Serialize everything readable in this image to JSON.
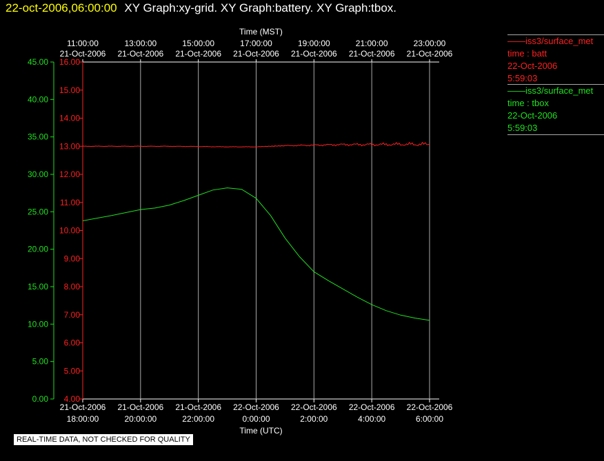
{
  "header": {
    "timestamp": "22-oct-2006,06:00:00",
    "graphs": "XY Graph:xy-grid.  XY Graph:battery.  XY Graph:tbox."
  },
  "note": "REAL-TIME DATA, NOT CHECKED FOR QUALITY",
  "colors": {
    "batt": "#ff2020",
    "tbox": "#20e020",
    "grid": "#aaaaaa",
    "text": "#ffffff",
    "stamp": "#ffff00"
  },
  "legend": [
    {
      "series": "iss3/surface_met",
      "var": "time : batt",
      "date": "22-Oct-2006",
      "time": "5:59:03",
      "color": "#ff2020"
    },
    {
      "series": "iss3/surface_met",
      "var": "time : tbox",
      "date": "22-Oct-2006",
      "time": "5:59:03",
      "color": "#20e020"
    }
  ],
  "chart_data": {
    "type": "line",
    "x_top_label": "Time (MST)",
    "x_bottom_label": "Time (UTC)",
    "x_top_ticks": [
      [
        "11:00:00",
        "21-Oct-2006"
      ],
      [
        "13:00:00",
        "21-Oct-2006"
      ],
      [
        "15:00:00",
        "21-Oct-2006"
      ],
      [
        "17:00:00",
        "21-Oct-2006"
      ],
      [
        "19:00:00",
        "21-Oct-2006"
      ],
      [
        "21:00:00",
        "21-Oct-2006"
      ],
      [
        "23:00:00",
        "21-Oct-2006"
      ]
    ],
    "x_bottom_ticks": [
      [
        "21-Oct-2006",
        "18:00:00"
      ],
      [
        "21-Oct-2006",
        "20:00:00"
      ],
      [
        "21-Oct-2006",
        "22:00:00"
      ],
      [
        "22-Oct-2006",
        "0:00:00"
      ],
      [
        "22-Oct-2006",
        "2:00:00"
      ],
      [
        "22-Oct-2006",
        "4:00:00"
      ],
      [
        "22-Oct-2006",
        "6:00:00"
      ]
    ],
    "x_range_hours_utc": [
      18,
      30
    ],
    "y_left_ticks": [
      "0.00",
      "5.00",
      "10.00",
      "15.00",
      "20.00",
      "25.00",
      "30.00",
      "35.00",
      "40.00",
      "45.00"
    ],
    "y_left_range": [
      0,
      45
    ],
    "y_right_ticks": [
      "4.00",
      "5.00",
      "6.00",
      "7.00",
      "8.00",
      "9.00",
      "10.00",
      "11.00",
      "12.00",
      "13.00",
      "14.00",
      "15.00",
      "16.00"
    ],
    "y_right_range": [
      4,
      16
    ],
    "series": [
      {
        "name": "time : batt",
        "axis": "right",
        "x": [
          18.0,
          19.0,
          20.0,
          21.0,
          22.0,
          23.0,
          24.0,
          24.5,
          25.0,
          26.0,
          27.0,
          28.0,
          29.0,
          30.0
        ],
        "y": [
          13.0,
          13.0,
          13.0,
          13.0,
          12.99,
          12.98,
          12.98,
          13.0,
          13.02,
          13.04,
          13.06,
          13.06,
          13.07,
          13.07
        ]
      },
      {
        "name": "time : tbox",
        "axis": "left",
        "x": [
          18.0,
          19.0,
          20.0,
          20.5,
          21.0,
          21.5,
          22.0,
          22.5,
          23.0,
          23.5,
          24.0,
          24.5,
          25.0,
          25.5,
          26.0,
          26.5,
          27.0,
          27.5,
          28.0,
          28.5,
          29.0,
          29.5,
          30.0
        ],
        "y": [
          23.8,
          24.5,
          25.3,
          25.5,
          25.9,
          26.5,
          27.2,
          27.9,
          28.2,
          28.0,
          26.8,
          24.5,
          21.5,
          19.0,
          17.0,
          15.8,
          14.7,
          13.6,
          12.6,
          11.8,
          11.2,
          10.8,
          10.5
        ]
      }
    ]
  }
}
